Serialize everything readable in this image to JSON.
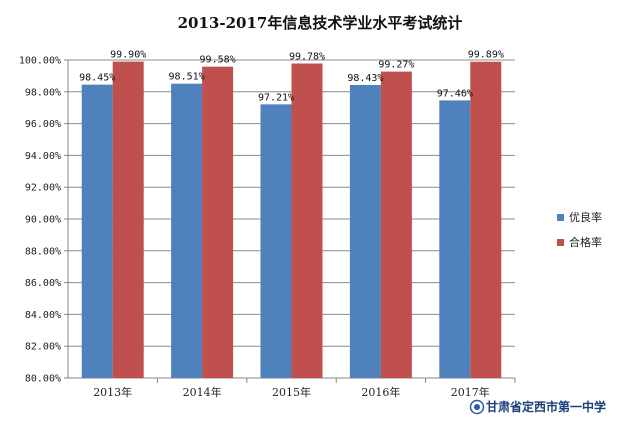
{
  "chart_data": {
    "type": "bar",
    "title": "2013-2017年信息技术学业水平考试统计",
    "categories": [
      "2013年",
      "2014年",
      "2015年",
      "2016年",
      "2017年"
    ],
    "series": [
      {
        "name": "优良率",
        "color": "#4f81bd",
        "values": [
          98.45,
          98.51,
          97.21,
          98.43,
          97.46
        ],
        "labels": [
          "98.45%",
          "98.51%",
          "97.21%",
          "98.43%",
          "97.46%"
        ]
      },
      {
        "name": "合格率",
        "color": "#c0504d",
        "values": [
          99.9,
          99.58,
          99.78,
          99.27,
          99.89
        ],
        "labels": [
          "99.90%",
          "99.58%",
          "99.78%",
          "99.27%",
          "99.89%"
        ]
      }
    ],
    "ylim": [
      80,
      100
    ],
    "yticks": [
      "80.00%",
      "82.00%",
      "84.00%",
      "86.00%",
      "88.00%",
      "90.00%",
      "92.00%",
      "94.00%",
      "96.00%",
      "98.00%",
      "100.00%"
    ],
    "grid": true,
    "legend_position": "right"
  },
  "watermark": {
    "text": "甘肃省定西市第一中学",
    "icon": "school-logo-icon"
  }
}
